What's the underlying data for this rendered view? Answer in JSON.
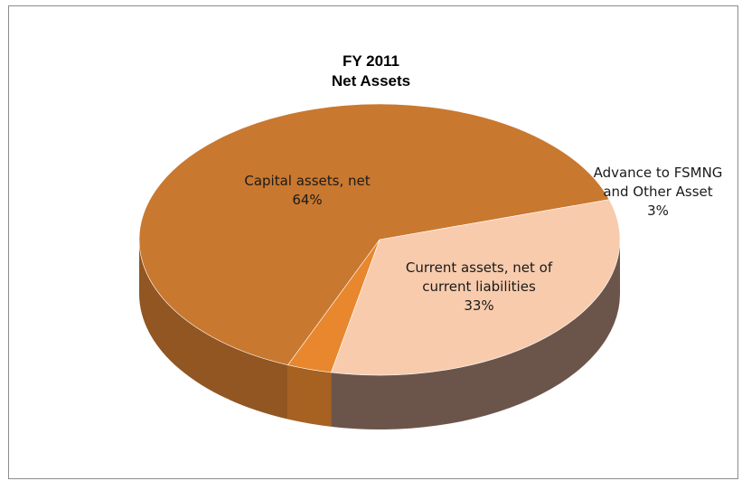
{
  "chart_data": {
    "type": "pie",
    "title": [
      "FY 2011",
      "Net Assets"
    ],
    "slices": [
      {
        "label": [
          "Capital assets, net"
        ],
        "percent_label": "64%",
        "value": 64,
        "color": "#c9782f"
      },
      {
        "label": [
          "Advance to FSMNG",
          "and Other Asset"
        ],
        "percent_label": "3%",
        "value": 3,
        "color": "#e8872e"
      },
      {
        "label": [
          "Current assets, net of",
          "current liabilities"
        ],
        "percent_label": "33%",
        "value": 33,
        "color": "#f8cbad"
      }
    ],
    "style": "3d"
  }
}
